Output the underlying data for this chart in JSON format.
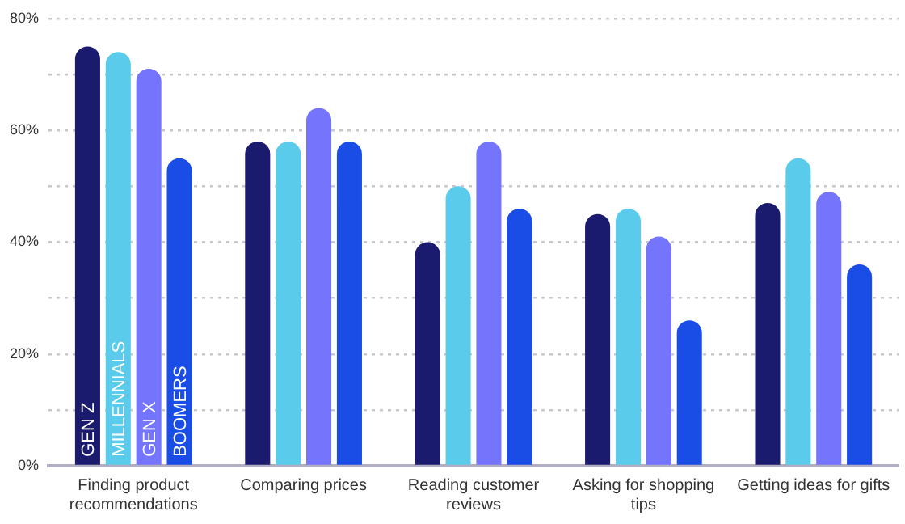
{
  "chart_data": {
    "type": "bar",
    "categories": [
      "Finding product recommendations",
      "Comparing prices",
      "Reading customer reviews",
      "Asking for shopping tips",
      "Getting ideas for gifts"
    ],
    "series": [
      {
        "name": "GEN Z",
        "color": "#1a1a6e",
        "values": [
          75,
          58,
          40,
          45,
          47
        ]
      },
      {
        "name": "MILLENNIALS",
        "color": "#5bcbec",
        "values": [
          74,
          58,
          50,
          46,
          55
        ]
      },
      {
        "name": "GEN X",
        "color": "#7474fc",
        "values": [
          71,
          64,
          58,
          41,
          49
        ]
      },
      {
        "name": "BOOMERS",
        "color": "#1a4de6",
        "values": [
          55,
          58,
          46,
          26,
          36
        ]
      }
    ],
    "ylim": [
      0,
      80
    ],
    "yticks": [
      {
        "value": 0,
        "label": "0%"
      },
      {
        "value": 10,
        "label": null
      },
      {
        "value": 20,
        "label": "20%"
      },
      {
        "value": 30,
        "label": null
      },
      {
        "value": 40,
        "label": "40%"
      },
      {
        "value": 50,
        "label": null
      },
      {
        "value": 60,
        "label": "60%"
      },
      {
        "value": 70,
        "label": null
      },
      {
        "value": 80,
        "label": "80%"
      }
    ],
    "grid": "y",
    "legend": false
  }
}
